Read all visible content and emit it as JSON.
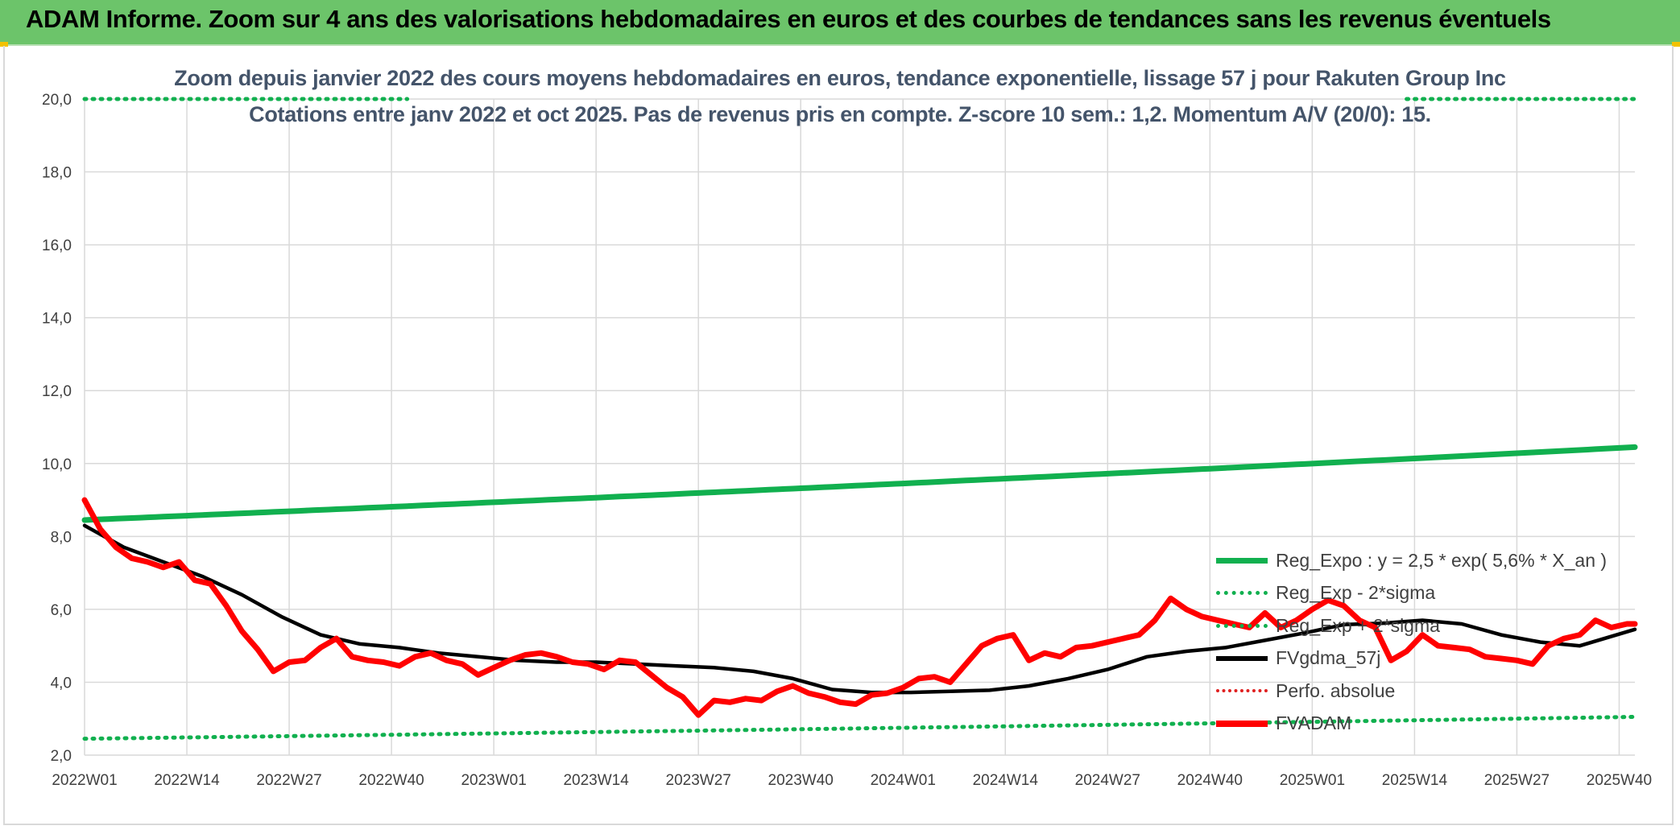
{
  "banner": {
    "title": "ADAM Informe. Zoom sur 4 ans des valorisations hebdomadaires en euros et des courbes de tendances sans les revenus éventuels"
  },
  "chart_data": {
    "type": "line",
    "title_line1": "Zoom depuis janvier 2022 des cours moyens hebdomadaires en euros, tendance exponentielle, lissage 57 j pour Rakuten Group Inc",
    "title_line2": "Cotations entre janv 2022 et oct 2025. Pas de revenus pris en compte. Z-score 10 sem.: 1,2. Momentum A/V (20/0): 15.",
    "x_tick_labels": [
      "2022W01",
      "2022W14",
      "2022W27",
      "2022W40",
      "2023W01",
      "2023W14",
      "2023W27",
      "2023W40",
      "2024W01",
      "2024W14",
      "2024W27",
      "2024W40",
      "2025W01",
      "2025W14",
      "2025W27",
      "2025W40"
    ],
    "y_tick_labels": [
      "2,0",
      "4,0",
      "6,0",
      "8,0",
      "10,0",
      "12,0",
      "14,0",
      "16,0",
      "18,0",
      "20,0"
    ],
    "ylim": [
      2,
      20
    ],
    "grid": true,
    "legend_position": "bottom-right",
    "series": [
      {
        "name": "Reg_Expo : y = 2,5 * exp( 5,6% *  X_an )",
        "color": "#11b04f",
        "style": "solid",
        "x": [
          0,
          197
        ],
        "values": [
          8.45,
          10.45
        ]
      },
      {
        "name": "Reg_Exp - 2*sigma",
        "color": "#11b04f",
        "style": "dotted",
        "x": [
          0,
          197
        ],
        "values": [
          2.45,
          3.05
        ]
      },
      {
        "name": "Reg_Exp + 2*sigma",
        "color": "#11b04f",
        "style": "dotted",
        "x": [
          0,
          197
        ],
        "values": [
          20.0,
          20.0
        ]
      },
      {
        "name": "FVgdma_57j",
        "color": "#000000",
        "style": "solid",
        "x": [
          0,
          5,
          10,
          15,
          20,
          25,
          30,
          35,
          40,
          45,
          50,
          55,
          60,
          65,
          70,
          75,
          80,
          85,
          90,
          95,
          100,
          105,
          110,
          115,
          120,
          125,
          130,
          135,
          140,
          145,
          150,
          155,
          160,
          165,
          170,
          175,
          180,
          185,
          190,
          197
        ],
        "values": [
          8.3,
          7.7,
          7.3,
          6.9,
          6.4,
          5.8,
          5.3,
          5.05,
          4.95,
          4.8,
          4.7,
          4.6,
          4.55,
          4.55,
          4.5,
          4.45,
          4.4,
          4.3,
          4.1,
          3.8,
          3.72,
          3.72,
          3.75,
          3.78,
          3.9,
          4.1,
          4.35,
          4.7,
          4.85,
          4.95,
          5.15,
          5.35,
          5.58,
          5.62,
          5.7,
          5.6,
          5.3,
          5.1,
          5.0,
          5.45
        ]
      },
      {
        "name": "Perfo. absolue",
        "color": "#e02020",
        "style": "dotted",
        "x": [],
        "values": []
      },
      {
        "name": "FVADAM",
        "color": "#ff0000",
        "style": "solid",
        "x": [
          0,
          2,
          4,
          6,
          8,
          10,
          12,
          14,
          16,
          18,
          20,
          22,
          24,
          26,
          28,
          30,
          32,
          34,
          36,
          38,
          40,
          42,
          44,
          46,
          48,
          50,
          52,
          54,
          56,
          58,
          60,
          62,
          64,
          66,
          68,
          70,
          72,
          74,
          76,
          78,
          80,
          82,
          84,
          86,
          88,
          90,
          92,
          94,
          96,
          98,
          100,
          102,
          104,
          106,
          108,
          110,
          112,
          114,
          116,
          118,
          120,
          122,
          124,
          126,
          128,
          130,
          132,
          134,
          136,
          138,
          140,
          142,
          144,
          146,
          148,
          150,
          152,
          154,
          156,
          158,
          160,
          162,
          164,
          166,
          168,
          170,
          172,
          174,
          176,
          178,
          180,
          182,
          184,
          186,
          188,
          190,
          192,
          194,
          196,
          197
        ],
        "values": [
          9.0,
          8.2,
          7.7,
          7.4,
          7.3,
          7.15,
          7.3,
          6.8,
          6.7,
          6.1,
          5.4,
          4.9,
          4.3,
          4.55,
          4.6,
          4.95,
          5.2,
          4.7,
          4.6,
          4.55,
          4.45,
          4.7,
          4.8,
          4.6,
          4.5,
          4.2,
          4.4,
          4.6,
          4.75,
          4.8,
          4.7,
          4.55,
          4.5,
          4.35,
          4.6,
          4.55,
          4.2,
          3.85,
          3.6,
          3.1,
          3.5,
          3.45,
          3.55,
          3.5,
          3.75,
          3.9,
          3.7,
          3.6,
          3.45,
          3.4,
          3.65,
          3.7,
          3.85,
          4.1,
          4.15,
          4.0,
          4.5,
          5.0,
          5.2,
          5.3,
          4.6,
          4.8,
          4.7,
          4.95,
          5.0,
          5.1,
          5.2,
          5.3,
          5.7,
          6.3,
          6.0,
          5.8,
          5.7,
          5.6,
          5.5,
          5.9,
          5.5,
          5.7,
          6.0,
          6.25,
          6.1,
          5.7,
          5.5,
          4.6,
          4.85,
          5.3,
          5.0,
          4.95,
          4.9,
          4.7,
          4.65,
          4.6,
          4.5,
          5.0,
          5.2,
          5.3,
          5.7,
          5.5,
          5.6,
          5.6
        ]
      }
    ]
  }
}
